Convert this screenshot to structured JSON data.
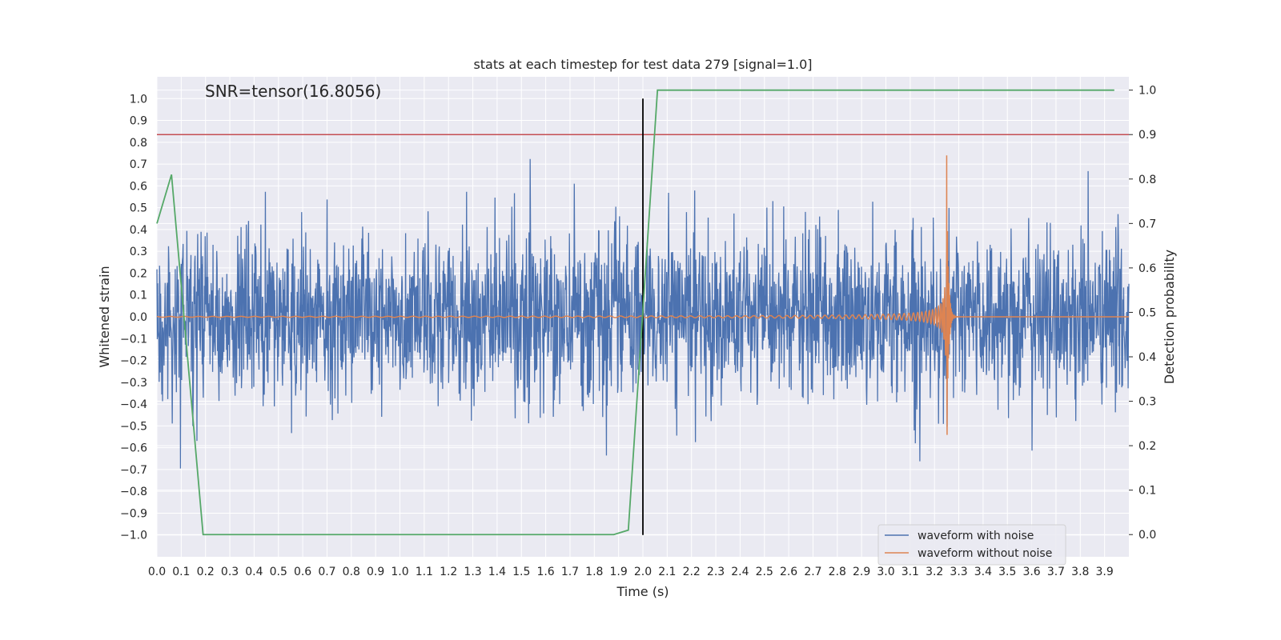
{
  "chart_data": {
    "type": "line",
    "title": "stats at each timestep for test data 279 [signal=1.0]",
    "xlabel": "Time (s)",
    "ylabel": "Whitened strain",
    "y2label": "Detection probability",
    "annotation": "SNR=tensor(16.8056)",
    "xlim": [
      0.0,
      4.0
    ],
    "ylim": [
      -1.1,
      1.1
    ],
    "y2lim": [
      -0.05,
      1.03
    ],
    "xticks": [
      "0.0",
      "0.1",
      "0.2",
      "0.3",
      "0.4",
      "0.5",
      "0.6",
      "0.7",
      "0.8",
      "0.9",
      "1.0",
      "1.1",
      "1.2",
      "1.3",
      "1.4",
      "1.5",
      "1.6",
      "1.7",
      "1.8",
      "1.9",
      "2.0",
      "2.1",
      "2.2",
      "2.3",
      "2.4",
      "2.5",
      "2.6",
      "2.7",
      "2.8",
      "2.9",
      "3.0",
      "3.1",
      "3.2",
      "3.3",
      "3.4",
      "3.5",
      "3.6",
      "3.7",
      "3.8",
      "3.9"
    ],
    "yticks": [
      "1.0",
      "0.9",
      "0.8",
      "0.7",
      "0.6",
      "0.5",
      "0.4",
      "0.3",
      "0.2",
      "0.1",
      "0.0",
      "−0.1",
      "−0.2",
      "−0.3",
      "−0.4",
      "−0.5",
      "−0.6",
      "−0.7",
      "−0.8",
      "−0.9",
      "−1.0"
    ],
    "y2ticks": [
      "1.0",
      "0.9",
      "0.8",
      "0.7",
      "0.6",
      "0.5",
      "0.4",
      "0.3",
      "0.2",
      "0.1",
      "0.0"
    ],
    "grid": true,
    "legend_position": "bottom-right",
    "series": [
      {
        "name": "waveform with noise",
        "color": "#4c72b0",
        "axis": "left",
        "description_values": "noise with std approx 0.2, peaks up to approx 0.99 near t=3.25"
      },
      {
        "name": "waveform without noise",
        "color": "#dd8452",
        "axis": "left",
        "merger_time": 3.25,
        "peak_amplitude": 0.88
      },
      {
        "color": "#55a868",
        "axis": "right",
        "x": [
          0.0,
          0.06,
          0.19,
          1.88,
          1.94,
          2.06,
          3.94
        ],
        "y": [
          0.7,
          0.81,
          0.0,
          0.0,
          0.01,
          1.0,
          1.0
        ]
      }
    ],
    "hlines": [
      {
        "axis": "right",
        "y": 0.9,
        "color": "#c44e52"
      }
    ],
    "vlines": [
      {
        "x": 2.0,
        "y_from": -1.0,
        "y_to": 1.0,
        "color": "#000000"
      }
    ]
  }
}
